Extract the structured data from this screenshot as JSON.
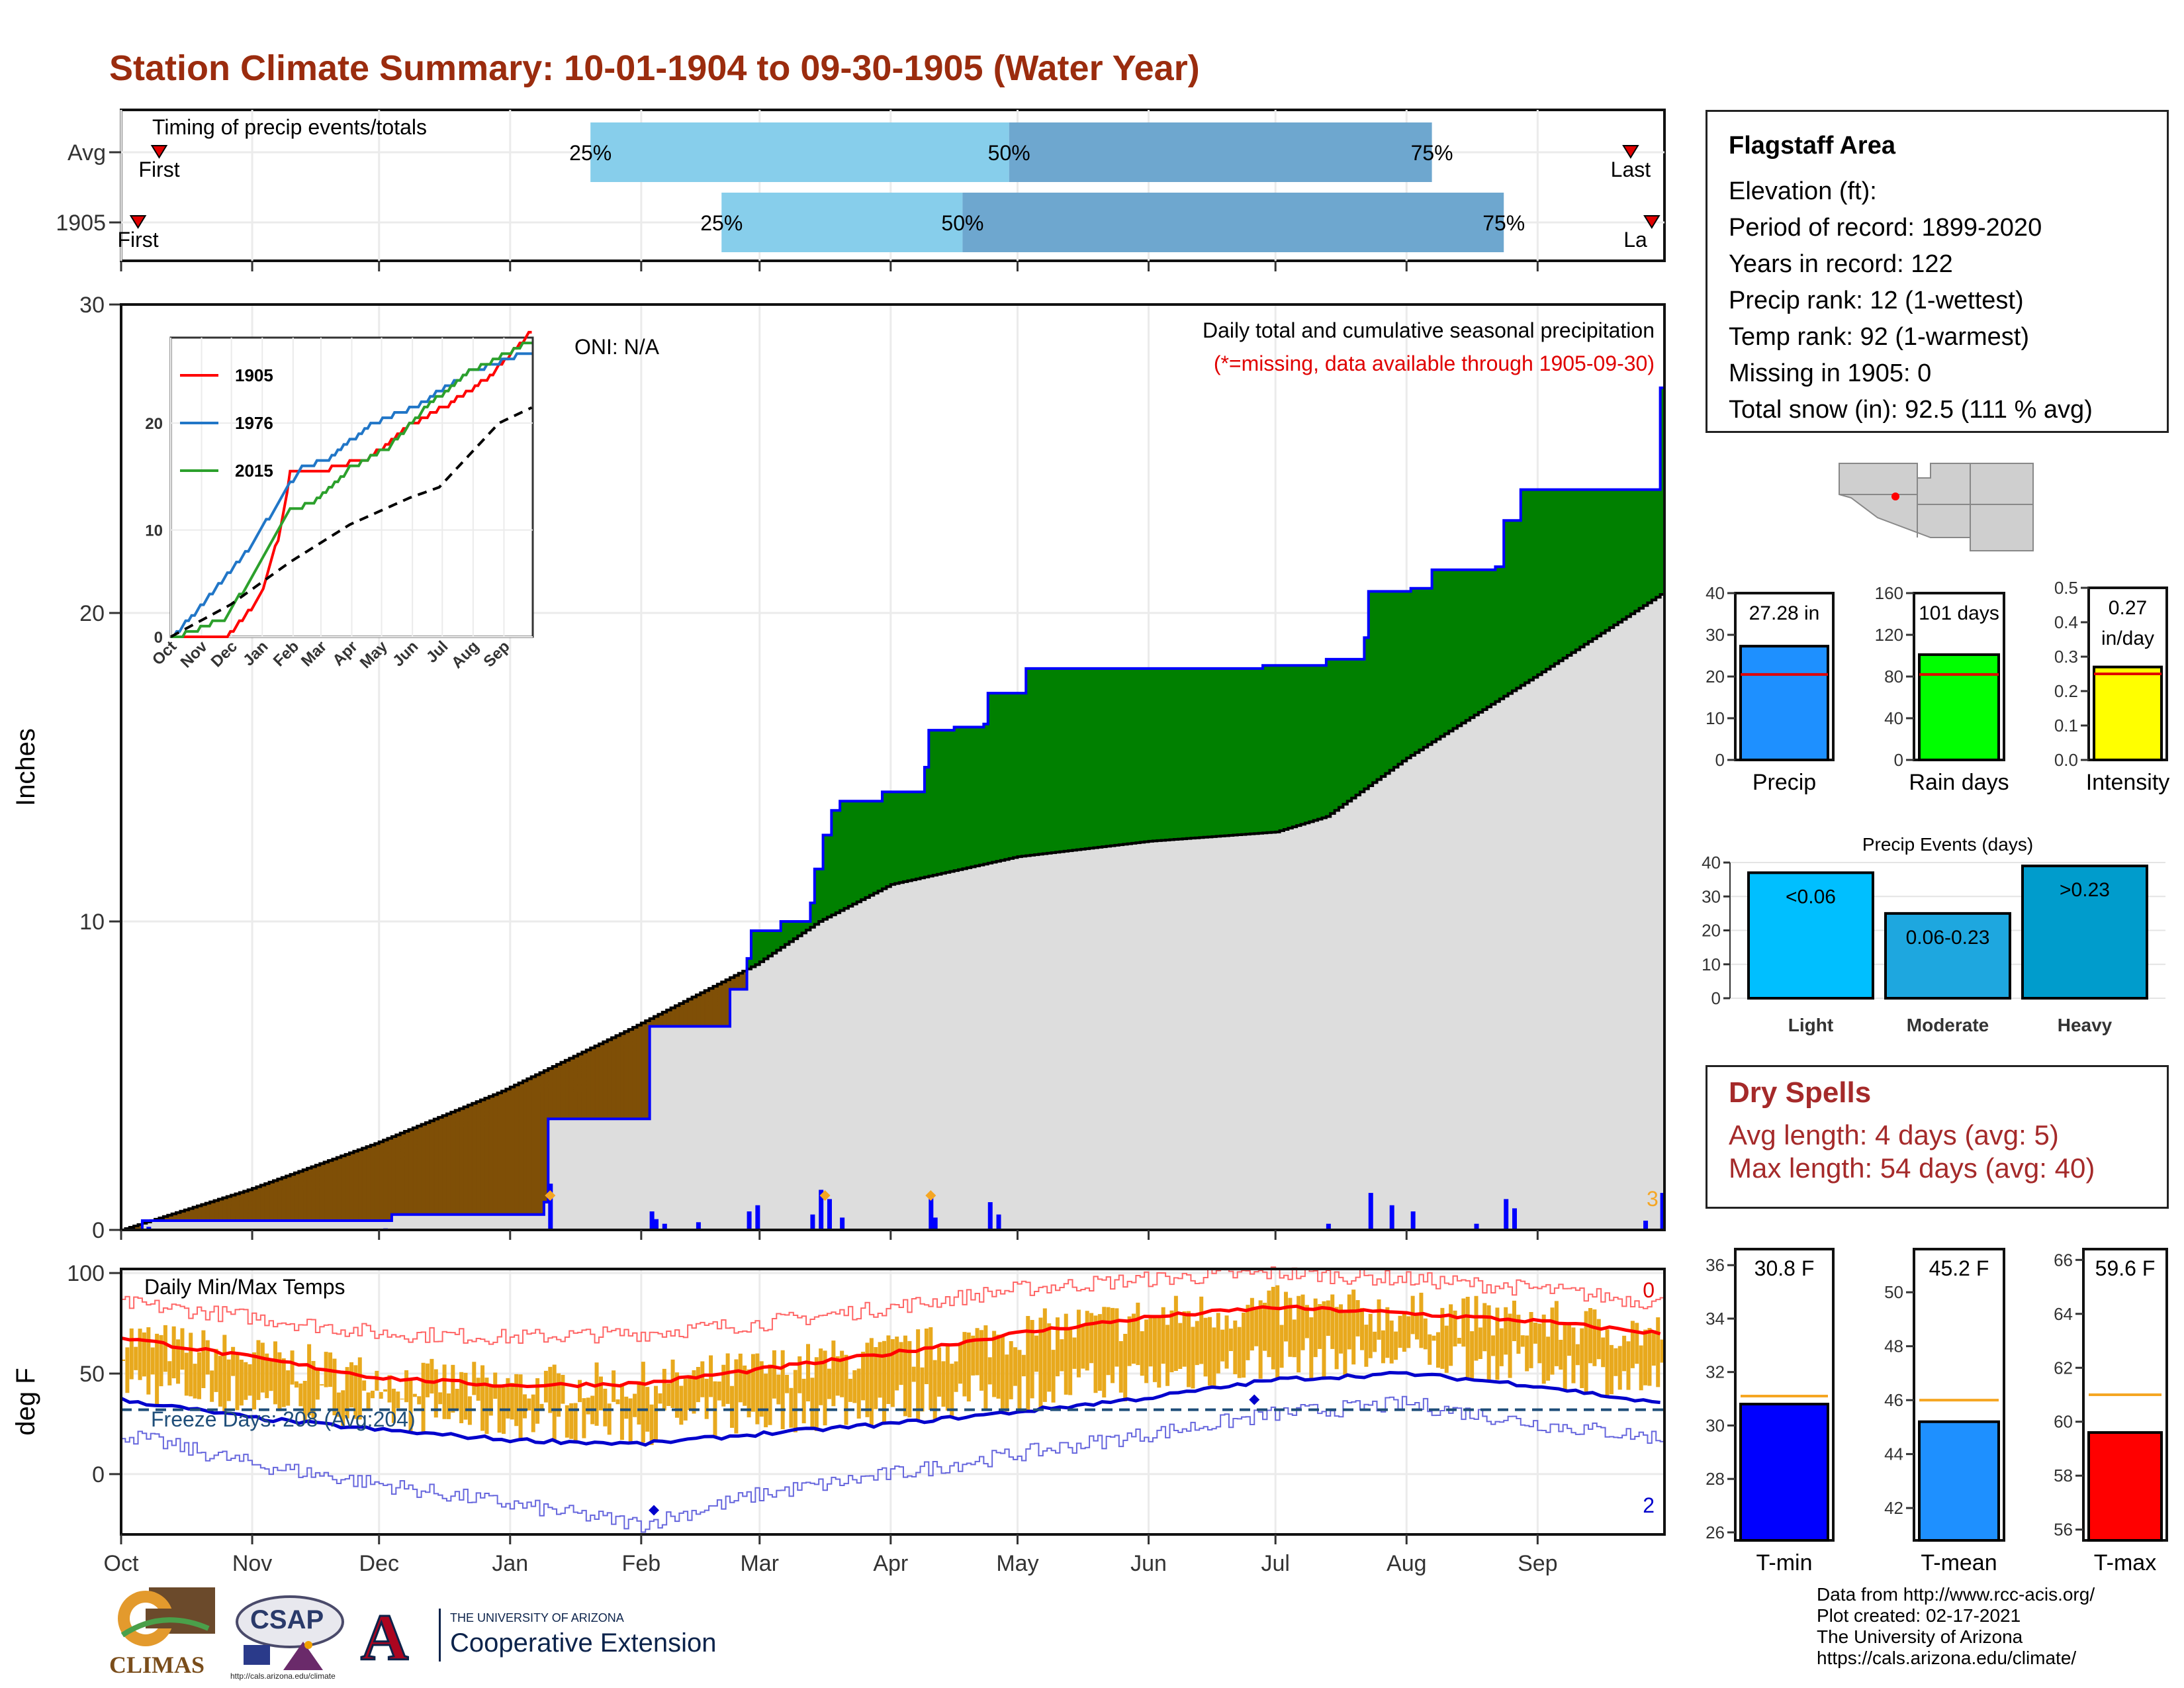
{
  "title": "Station Climate Summary: 10-01-1904 to 09-30-1905 (Water Year)",
  "timing": {
    "caption": "Timing of precip events/totals",
    "rows": [
      "Avg",
      "1905"
    ],
    "first_label": "First",
    "last_label": "Last",
    "last_label_clipped": "La",
    "pct_labels": [
      "25%",
      "50%",
      "75%"
    ],
    "avg": {
      "first_day": 9,
      "p25": 111,
      "p50": 210,
      "p75": 310,
      "last_day": 357
    },
    "y1905": {
      "first_day": 4,
      "p25": 142,
      "p50": 199,
      "p75": 327,
      "last_day": 362
    }
  },
  "info": {
    "title": "Flagstaff Area",
    "rows": [
      "Elevation (ft):",
      "Period of record: 1899-2020",
      "Years in record: 122",
      "Precip rank: 12 (1-wettest)",
      "Temp rank: 92 (1-warmest)",
      "Missing in 1905: 0",
      "Total snow (in): 92.5 (111 % avg)"
    ]
  },
  "dry_spells": {
    "title": "Dry Spells",
    "rows": [
      "Avg length: 4 days (avg: 5)",
      "Max length: 54 days (avg: 40)"
    ]
  },
  "credits": [
    "Data from http://www.rcc-acis.org/",
    "Plot created: 02-17-2021",
    "The University of Arizona",
    "https://cals.arizona.edu/climate/"
  ],
  "logos": {
    "climas": "CLIMAS",
    "csap": "CSAP",
    "csap_url": "http://cals.arizona.edu/climate",
    "ua_small": "THE UNIVERSITY OF ARIZONA",
    "ua_big": "Cooperative Extension",
    "ua_mark": "A"
  },
  "colors": {
    "title": "#9b2c0e",
    "surplus": "#008000",
    "deficit": "#7f4f06",
    "normal_fill": "#dddddd",
    "obs_line": "#0000ff",
    "tmax": "#ff0000",
    "tmin": "#0000cc",
    "temp_bar": "#e8a91d",
    "bar_light": "#87ceeb",
    "bar_dark": "#6ea7cf"
  },
  "months": [
    "Oct",
    "Nov",
    "Dec",
    "Jan",
    "Feb",
    "Mar",
    "Apr",
    "May",
    "Jun",
    "Jul",
    "Aug",
    "Sep"
  ],
  "month_start_days": [
    0,
    31,
    61,
    92,
    123,
    151,
    182,
    212,
    243,
    273,
    304,
    335
  ],
  "chart_data": [
    {
      "type": "area",
      "name": "precip",
      "subtitle": "Daily total and cumulative seasonal precipitation",
      "note": "(*=missing, data available through 1905-09-30)",
      "oni": "ONI: N/A",
      "ylabel": "Inches",
      "ylim": [
        0,
        30
      ],
      "yticks": [
        0,
        10,
        20,
        30
      ],
      "corner_label": "3",
      "x_days": 365,
      "normal_cumulative": [
        [
          0,
          0.0
        ],
        [
          30,
          1.3
        ],
        [
          60,
          2.8
        ],
        [
          90,
          4.5
        ],
        [
          120,
          6.5
        ],
        [
          150,
          8.6
        ],
        [
          165,
          10.0
        ],
        [
          182,
          11.2
        ],
        [
          212,
          12.1
        ],
        [
          243,
          12.6
        ],
        [
          273,
          12.9
        ],
        [
          285,
          13.4
        ],
        [
          304,
          15.3
        ],
        [
          335,
          18.0
        ],
        [
          364,
          20.6
        ]
      ],
      "observed_cumulative": [
        [
          0,
          0.0
        ],
        [
          5,
          0.3
        ],
        [
          62,
          0.3
        ],
        [
          64,
          0.5
        ],
        [
          100,
          0.9
        ],
        [
          101,
          3.6
        ],
        [
          124,
          3.6
        ],
        [
          125,
          6.6
        ],
        [
          144,
          7.8
        ],
        [
          148,
          8.8
        ],
        [
          149,
          9.7
        ],
        [
          156,
          10.0
        ],
        [
          163,
          10.6
        ],
        [
          164,
          11.7
        ],
        [
          166,
          12.8
        ],
        [
          168,
          13.6
        ],
        [
          170,
          13.9
        ],
        [
          180,
          14.2
        ],
        [
          190,
          15.0
        ],
        [
          191,
          16.2
        ],
        [
          197,
          16.3
        ],
        [
          204,
          16.4
        ],
        [
          205,
          17.4
        ],
        [
          214,
          18.2
        ],
        [
          270,
          18.3
        ],
        [
          285,
          18.5
        ],
        [
          294,
          19.2
        ],
        [
          295,
          20.7
        ],
        [
          305,
          20.8
        ],
        [
          310,
          21.4
        ],
        [
          325,
          21.5
        ],
        [
          327,
          23.0
        ],
        [
          331,
          24.0
        ],
        [
          335,
          24.0
        ],
        [
          363,
          24.0
        ],
        [
          364,
          27.3
        ]
      ],
      "daily_precip": [
        [
          6,
          0.1
        ],
        [
          62,
          0.05
        ],
        [
          101,
          1.5
        ],
        [
          125,
          0.6
        ],
        [
          126,
          0.35
        ],
        [
          128,
          0.2
        ],
        [
          136,
          0.25
        ],
        [
          148,
          0.6
        ],
        [
          150,
          0.8
        ],
        [
          163,
          0.5
        ],
        [
          165,
          1.3
        ],
        [
          167,
          1.0
        ],
        [
          170,
          0.4
        ],
        [
          191,
          1.2
        ],
        [
          192,
          0.4
        ],
        [
          205,
          0.9
        ],
        [
          207,
          0.5
        ],
        [
          285,
          0.2
        ],
        [
          295,
          1.2
        ],
        [
          300,
          0.8
        ],
        [
          305,
          0.6
        ],
        [
          320,
          0.2
        ],
        [
          327,
          1.0
        ],
        [
          329,
          0.7
        ],
        [
          360,
          0.3
        ],
        [
          364,
          1.2
        ]
      ],
      "snow_markers": [
        101,
        166,
        191
      ]
    },
    {
      "type": "line",
      "name": "inset cumulative",
      "series": [
        {
          "name": "1905",
          "color": "#ff0000",
          "points": [
            [
              0,
              0
            ],
            [
              60,
              0.5
            ],
            [
              90,
              4.0
            ],
            [
              110,
              10.0
            ],
            [
              120,
              15.5
            ],
            [
              160,
              16.0
            ],
            [
              200,
              17.0
            ],
            [
              240,
              20.0
            ],
            [
              280,
              22.0
            ],
            [
              320,
              24.5
            ],
            [
              364,
              29.0
            ]
          ]
        },
        {
          "name": "1976",
          "color": "#2176c7",
          "points": [
            [
              0,
              0
            ],
            [
              30,
              3.0
            ],
            [
              75,
              8.0
            ],
            [
              110,
              13.0
            ],
            [
              130,
              16.0
            ],
            [
              160,
              17.0
            ],
            [
              200,
              20.0
            ],
            [
              250,
              22.0
            ],
            [
              300,
              25.0
            ],
            [
              364,
              27.0
            ]
          ]
        },
        {
          "name": "2015",
          "color": "#2ca02c",
          "points": [
            [
              0,
              0
            ],
            [
              55,
              2.0
            ],
            [
              90,
              7.0
            ],
            [
              120,
              12.0
            ],
            [
              145,
              13.0
            ],
            [
              180,
              16.0
            ],
            [
              220,
              18.0
            ],
            [
              260,
              22.0
            ],
            [
              300,
              25.0
            ],
            [
              364,
              28.0
            ]
          ]
        },
        {
          "name": "avg",
          "color": "#000000",
          "dashed": true,
          "points": [
            [
              0,
              0
            ],
            [
              60,
              3.0
            ],
            [
              120,
              7.0
            ],
            [
              180,
              10.5
            ],
            [
              240,
              13.0
            ],
            [
              270,
              14.0
            ],
            [
              300,
              17.0
            ],
            [
              330,
              20.0
            ],
            [
              364,
              21.5
            ]
          ]
        }
      ],
      "ylim": [
        0,
        28
      ],
      "yticks": [
        0,
        10,
        20
      ],
      "xticks": [
        "Oct",
        "Nov",
        "Dec",
        "Jan",
        "Feb",
        "Mar",
        "Apr",
        "May",
        "Jun",
        "Jul",
        "Aug",
        "Sep"
      ]
    },
    {
      "type": "line",
      "name": "temps",
      "title": "Daily Min/Max Temps",
      "ylabel": "deg F",
      "ylim": [
        -30,
        102
      ],
      "yticks": [
        0,
        50,
        100
      ],
      "freeze_label": "Freeze Days: 208 (Avg:204)",
      "freeze_line": 32,
      "max_count": "0",
      "min_count": "2",
      "normal_max": [
        [
          0,
          68
        ],
        [
          31,
          58
        ],
        [
          61,
          48
        ],
        [
          92,
          44
        ],
        [
          123,
          45
        ],
        [
          151,
          52
        ],
        [
          182,
          60
        ],
        [
          212,
          70
        ],
        [
          243,
          78
        ],
        [
          273,
          83
        ],
        [
          304,
          80
        ],
        [
          335,
          76
        ],
        [
          364,
          70
        ]
      ],
      "normal_min": [
        [
          0,
          37
        ],
        [
          31,
          28
        ],
        [
          61,
          22
        ],
        [
          92,
          17
        ],
        [
          123,
          15
        ],
        [
          151,
          20
        ],
        [
          182,
          25
        ],
        [
          212,
          31
        ],
        [
          243,
          38
        ],
        [
          273,
          47
        ],
        [
          304,
          50
        ],
        [
          335,
          44
        ],
        [
          364,
          35
        ]
      ],
      "record_max": [
        [
          0,
          85
        ],
        [
          31,
          78
        ],
        [
          61,
          70
        ],
        [
          92,
          68
        ],
        [
          123,
          70
        ],
        [
          151,
          75
        ],
        [
          182,
          83
        ],
        [
          212,
          92
        ],
        [
          243,
          97
        ],
        [
          273,
          100
        ],
        [
          304,
          97
        ],
        [
          335,
          92
        ],
        [
          364,
          85
        ]
      ],
      "record_min": [
        [
          0,
          20
        ],
        [
          31,
          5
        ],
        [
          61,
          -5
        ],
        [
          92,
          -15
        ],
        [
          123,
          -25
        ],
        [
          151,
          -10
        ],
        [
          182,
          0
        ],
        [
          212,
          10
        ],
        [
          243,
          20
        ],
        [
          273,
          30
        ],
        [
          304,
          35
        ],
        [
          335,
          25
        ],
        [
          364,
          18
        ]
      ],
      "extreme_min_markers": [
        [
          126,
          -18
        ],
        [
          268,
          37
        ]
      ]
    },
    {
      "type": "bar",
      "name": "precip totals",
      "categories": [
        "Precip"
      ],
      "values": [
        27.28
      ],
      "avg": 20.5,
      "label": "27.28 in",
      "ylim": [
        0,
        40
      ],
      "yticks": [
        0,
        10,
        20,
        30,
        40
      ],
      "color": "#1e90ff"
    },
    {
      "type": "bar",
      "name": "rain days",
      "categories": [
        "Rain days"
      ],
      "values": [
        101
      ],
      "avg": 82,
      "label": "101 days",
      "ylim": [
        0,
        160
      ],
      "yticks": [
        0,
        40,
        80,
        120,
        160
      ],
      "color": "#00ff00"
    },
    {
      "type": "bar",
      "name": "intensity",
      "categories": [
        "Intensity"
      ],
      "values": [
        0.27
      ],
      "avg": 0.25,
      "label": "0.27 in/day",
      "ylim": [
        0,
        0.5
      ],
      "yticks": [
        0.0,
        0.1,
        0.2,
        0.3,
        0.4,
        0.5
      ],
      "color": "#ffff00"
    },
    {
      "type": "bar",
      "name": "Precip Events (days)",
      "title": "Precip Events (days)",
      "categories": [
        "Light",
        "Moderate",
        "Heavy"
      ],
      "labels": [
        "<0.06",
        "0.06-0.23",
        ">0.23"
      ],
      "values": [
        37,
        25,
        39
      ],
      "colors": [
        "#00bfff",
        "#1ea7df",
        "#009ccc"
      ],
      "ylim": [
        0,
        40
      ],
      "yticks": [
        0,
        10,
        20,
        30,
        40
      ]
    },
    {
      "type": "bar",
      "name": "T-min",
      "categories": [
        "T-min"
      ],
      "values": [
        30.8
      ],
      "avg": 31.1,
      "label": "30.8 F",
      "ylim": [
        25.7,
        36.6
      ],
      "yticks": [
        26,
        28,
        30,
        32,
        34,
        36
      ],
      "color": "#0000ff"
    },
    {
      "type": "bar",
      "name": "T-mean",
      "categories": [
        "T-mean"
      ],
      "values": [
        45.2
      ],
      "avg": 46.0,
      "label": "45.2 F",
      "ylim": [
        40.8,
        51.6
      ],
      "yticks": [
        42,
        44,
        46,
        48,
        50
      ],
      "color": "#1e90ff"
    },
    {
      "type": "bar",
      "name": "T-max",
      "categories": [
        "T-max"
      ],
      "values": [
        59.6
      ],
      "avg": 61.0,
      "label": "59.6 F",
      "ylim": [
        55.6,
        66.4
      ],
      "yticks": [
        56,
        58,
        60,
        62,
        64,
        66
      ],
      "color": "#ff0000"
    }
  ]
}
